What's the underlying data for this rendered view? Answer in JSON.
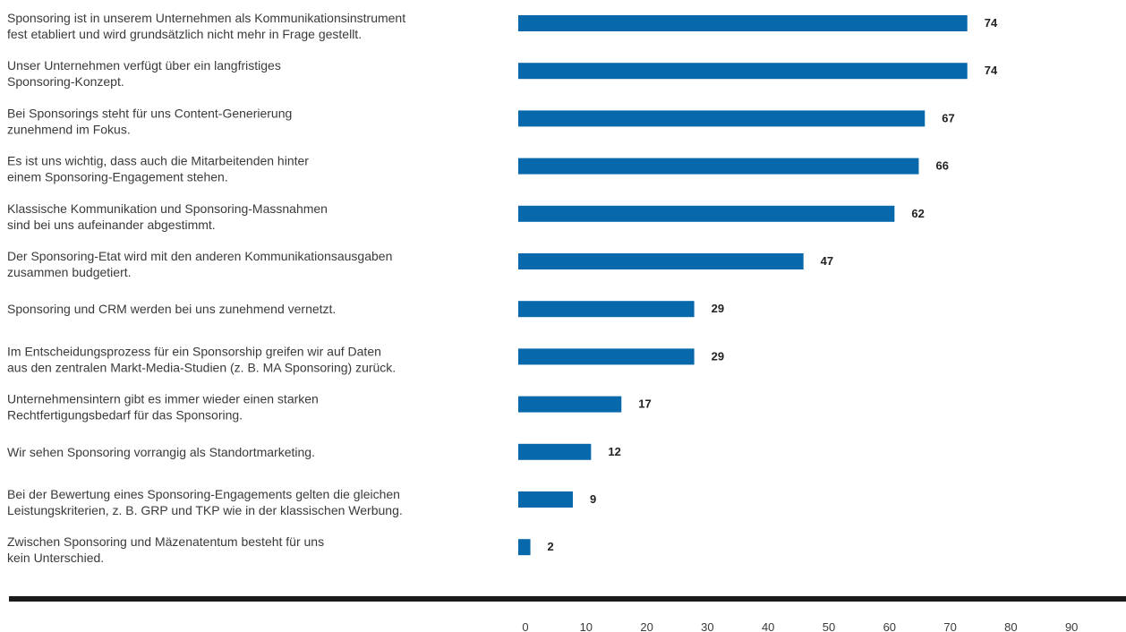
{
  "chart_data": {
    "type": "bar",
    "orientation": "horizontal",
    "title": "",
    "xlabel": "",
    "ylabel": "",
    "categories": [
      [
        "Sponsoring ist in unserem Unternehmen als Kommunikationsinstrument",
        "fest etabliert und wird grundsätzlich nicht mehr in Frage gestellt."
      ],
      [
        "Unser Unternehmen verfügt über ein langfristiges",
        "Sponsoring-Konzept."
      ],
      [
        "Bei Sponsorings steht für uns Content-Generierung",
        "zunehmend im Fokus."
      ],
      [
        "Es ist uns wichtig, dass auch die Mitarbeitenden hinter",
        "einem Sponsoring-Engagement stehen."
      ],
      [
        "Klassische Kommunikation und Sponsoring-Massnahmen",
        "sind bei uns aufeinander abgestimmt."
      ],
      [
        "Der Sponsoring-Etat wird mit den anderen Kommunikationsausgaben",
        "zusammen budgetiert."
      ],
      [
        "Sponsoring und CRM werden bei uns zunehmend vernetzt."
      ],
      [
        "Im Entscheidungsprozess für ein Sponsorship greifen wir auf Daten",
        "aus den zentralen Markt-Media-Studien (z. B. MA Sponsoring) zurück."
      ],
      [
        "Unternehmensintern gibt es immer wieder einen starken",
        "Rechtfertigungsbedarf für das Sponsoring."
      ],
      [
        "Wir sehen Sponsoring vorrangig als Standortmarketing."
      ],
      [
        "Bei der Bewertung eines Sponsoring-Engagements gelten die gleichen",
        "Leistungskriterien, z. B. GRP und TKP wie in der klassischen Werbung."
      ],
      [
        "Zwischen Sponsoring und Mäzenatentum besteht für uns",
        "kein Unterschied."
      ]
    ],
    "values": [
      74,
      74,
      67,
      66,
      62,
      47,
      29,
      29,
      17,
      12,
      9,
      2
    ],
    "xlim": [
      0,
      100
    ],
    "xticks": [
      0,
      10,
      20,
      30,
      40,
      50,
      60,
      70,
      80,
      90
    ],
    "grid": false,
    "legend": "none",
    "bar_color": "#0868ac",
    "axis_line_color": "#1a1a1a"
  }
}
